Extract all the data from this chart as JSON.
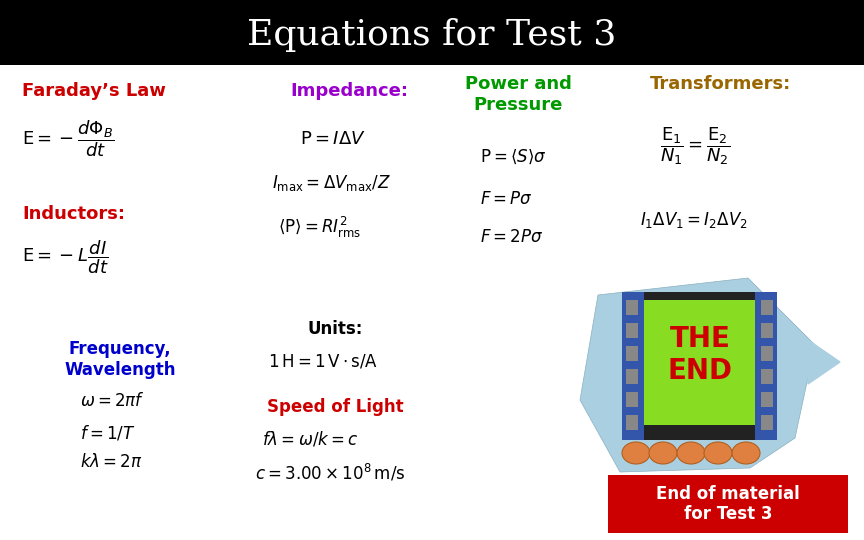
{
  "title": "Equations for Test 3",
  "title_color": "#ffffff",
  "title_bg_color": "#000000",
  "bg_color": "#ffffff",
  "faraday_label": "Faraday’s Law",
  "faraday_label_color": "#cc0000",
  "inductors_label": "Inductors:",
  "inductors_label_color": "#cc0000",
  "impedance_label": "Impedance:",
  "impedance_label_color": "#9900cc",
  "power_label": "Power and\nPressure",
  "power_label_color": "#009900",
  "transformers_label": "Transformers:",
  "transformers_label_color": "#996600",
  "frequency_label": "Frequency,\nWavelength",
  "frequency_label_color": "#0000cc",
  "units_label": "Units:",
  "speed_label": "Speed of Light",
  "speed_label_color": "#cc0000",
  "end_label": "End of material\nfor Test 3",
  "end_bg_color": "#cc0000",
  "end_text_color": "#ffffff"
}
